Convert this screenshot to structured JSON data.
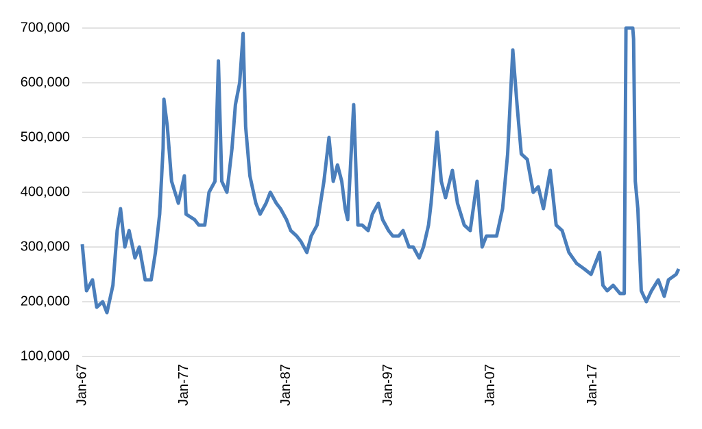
{
  "chart_data": {
    "type": "line",
    "x": [
      "1967-01",
      "1967-06",
      "1968-01",
      "1968-06",
      "1969-01",
      "1969-06",
      "1970-01",
      "1970-06",
      "1970-10",
      "1971-03",
      "1971-08",
      "1972-03",
      "1972-08",
      "1973-03",
      "1973-10",
      "1974-03",
      "1974-08",
      "1974-12",
      "1975-01",
      "1975-05",
      "1975-10",
      "1976-06",
      "1977-01",
      "1977-03",
      "1978-01",
      "1978-06",
      "1979-01",
      "1979-06",
      "1980-01",
      "1980-05",
      "1980-09",
      "1981-03",
      "1981-09",
      "1982-01",
      "1982-06",
      "1982-10",
      "1983-01",
      "1983-06",
      "1984-01",
      "1984-06",
      "1985-01",
      "1985-06",
      "1986-01",
      "1986-06",
      "1987-01",
      "1987-06",
      "1988-01",
      "1988-06",
      "1989-01",
      "1989-06",
      "1990-01",
      "1990-09",
      "1991-03",
      "1991-08",
      "1992-01",
      "1992-06",
      "1992-10",
      "1993-01",
      "1993-08",
      "1994-01",
      "1994-06",
      "1995-01",
      "1995-06",
      "1996-01",
      "1996-06",
      "1997-01",
      "1997-06",
      "1998-01",
      "1998-06",
      "1999-01",
      "1999-06",
      "2000-01",
      "2000-06",
      "2000-12",
      "2001-03",
      "2001-10",
      "2002-03",
      "2002-08",
      "2003-04",
      "2003-10",
      "2004-06",
      "2005-01",
      "2005-09",
      "2006-03",
      "2006-08",
      "2007-01",
      "2007-08",
      "2008-03",
      "2008-09",
      "2009-03",
      "2009-08",
      "2010-01",
      "2010-08",
      "2011-03",
      "2011-09",
      "2012-03",
      "2012-11",
      "2013-06",
      "2014-01",
      "2014-09",
      "2015-06",
      "2016-03",
      "2016-11",
      "2017-09",
      "2018-01",
      "2018-06",
      "2019-01",
      "2019-09",
      "2020-02",
      "2020-04",
      "2020-12",
      "2021-01",
      "2021-03",
      "2021-06",
      "2021-10",
      "2022-04",
      "2022-10",
      "2023-06",
      "2024-01",
      "2024-06",
      "2025-03",
      "2025-06"
    ],
    "series": [
      {
        "color": "#4a7ebb",
        "values": [
          305000,
          220000,
          240000,
          190000,
          200000,
          180000,
          230000,
          330000,
          370000,
          300000,
          330000,
          280000,
          300000,
          240000,
          240000,
          290000,
          360000,
          480000,
          570000,
          520000,
          420000,
          380000,
          430000,
          360000,
          350000,
          340000,
          340000,
          400000,
          420000,
          640000,
          420000,
          400000,
          480000,
          560000,
          600000,
          690000,
          520000,
          430000,
          380000,
          360000,
          380000,
          400000,
          380000,
          370000,
          350000,
          330000,
          320000,
          310000,
          290000,
          320000,
          340000,
          420000,
          500000,
          420000,
          450000,
          420000,
          370000,
          350000,
          560000,
          340000,
          340000,
          330000,
          360000,
          380000,
          350000,
          330000,
          320000,
          320000,
          330000,
          300000,
          300000,
          280000,
          300000,
          340000,
          380000,
          510000,
          420000,
          390000,
          440000,
          380000,
          340000,
          330000,
          420000,
          300000,
          320000,
          320000,
          320000,
          370000,
          470000,
          660000,
          560000,
          470000,
          460000,
          400000,
          410000,
          370000,
          440000,
          340000,
          330000,
          290000,
          270000,
          260000,
          250000,
          290000,
          230000,
          220000,
          230000,
          215000,
          215000,
          700000,
          700000,
          680000,
          420000,
          370000,
          220000,
          200000,
          220000,
          240000,
          210000,
          240000,
          250000,
          260000
        ]
      }
    ],
    "xlim": [
      "1967-01",
      "2025-06"
    ],
    "xticks": [
      {
        "value": "1967-01",
        "label": "Jan-67"
      },
      {
        "value": "1977-01",
        "label": "Jan-77"
      },
      {
        "value": "1987-01",
        "label": "Jan-87"
      },
      {
        "value": "1997-01",
        "label": "Jan-97"
      },
      {
        "value": "2007-01",
        "label": "Jan-07"
      },
      {
        "value": "2017-01",
        "label": "Jan-17"
      }
    ],
    "ylim": [
      100000,
      700000
    ],
    "yticks": [
      {
        "value": 100000,
        "label": "100,000"
      },
      {
        "value": 200000,
        "label": "200,000"
      },
      {
        "value": 300000,
        "label": "300,000"
      },
      {
        "value": 400000,
        "label": "400,000"
      },
      {
        "value": 500000,
        "label": "500,000"
      },
      {
        "value": 600000,
        "label": "600,000"
      },
      {
        "value": 700000,
        "label": "700,000"
      }
    ],
    "grid": true
  }
}
